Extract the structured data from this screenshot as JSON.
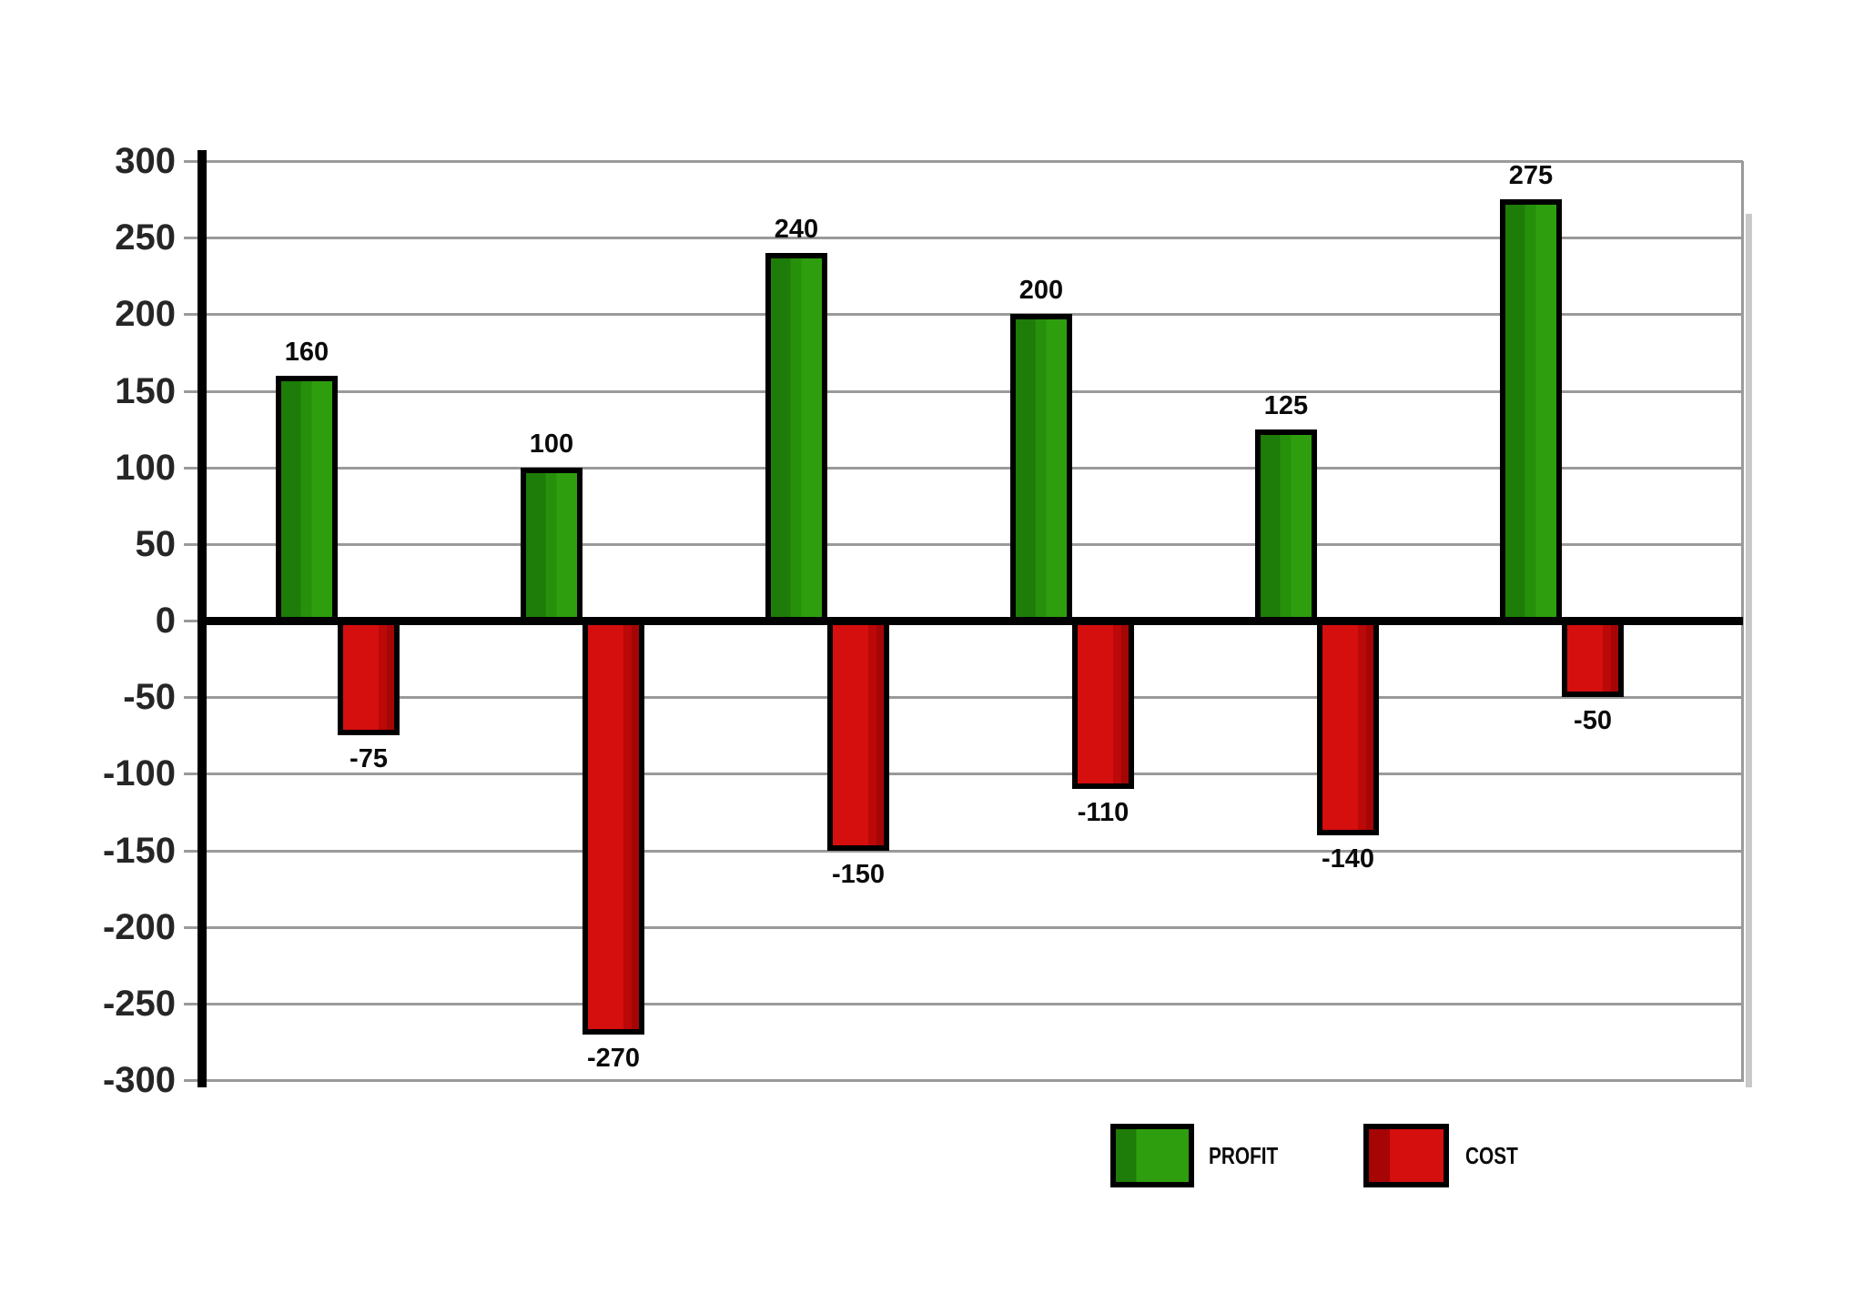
{
  "chart_data": {
    "type": "bar",
    "title": "",
    "categories": [
      "",
      "",
      "",
      "",
      "",
      ""
    ],
    "series": [
      {
        "name": "PROFIT",
        "values": [
          160,
          100,
          240,
          200,
          125,
          275
        ]
      },
      {
        "name": "COST",
        "values": [
          -75,
          -270,
          -150,
          -110,
          -140,
          -50
        ]
      }
    ],
    "ylim": [
      -300,
      300
    ],
    "ytick_step": 50,
    "yticks": [
      300,
      250,
      200,
      150,
      100,
      50,
      0,
      -50,
      -100,
      -150,
      -200,
      -250,
      -300
    ],
    "grid": true,
    "value_labels": true,
    "legend_position": "bottom-right"
  },
  "legend": {
    "profit_label": "PROFIT",
    "cost_label": "COST"
  },
  "colors": {
    "background": "#FFFFFF",
    "grid": "#9A9A9A",
    "grid_shadow": "#C9C9C9",
    "axis": "#000000",
    "tick_text": "#262626",
    "value_text": "#0A0A0A",
    "profit_green": "#2E9E0F",
    "profit_green_mid": "#27900B",
    "profit_green_dark": "#1E7C08",
    "cost_red": "#D50E0E",
    "cost_red_mid": "#BB0808",
    "cost_red_dark": "#A50505"
  }
}
